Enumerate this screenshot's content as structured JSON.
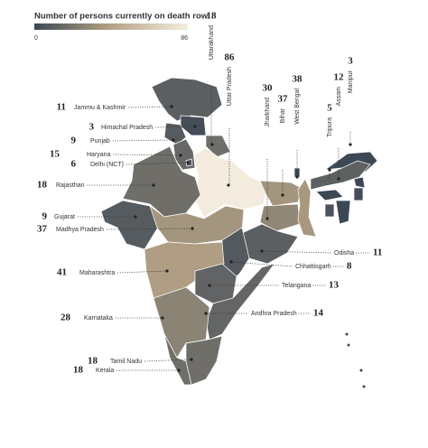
{
  "title": "Number of persons currently on death row",
  "scale": {
    "min": 0,
    "max": 86,
    "colors": [
      "#3d4855",
      "#b5a285",
      "#f3ecde"
    ]
  },
  "states": [
    {
      "name": "Uttarakhand",
      "value": 18
    },
    {
      "name": "Uttar Pradesh",
      "value": 86
    },
    {
      "name": "Jharkhand",
      "value": 30
    },
    {
      "name": "Bihar",
      "value": 37
    },
    {
      "name": "West Bengal",
      "value": 38
    },
    {
      "name": "Tripura",
      "value": 5
    },
    {
      "name": "Assam",
      "value": 12
    },
    {
      "name": "Manipur",
      "value": 3
    },
    {
      "name": "Jammu & Kashmir",
      "value": 11
    },
    {
      "name": "Himachal Pradesh",
      "value": 3
    },
    {
      "name": "Punjab",
      "value": 9
    },
    {
      "name": "Haryana",
      "value": 15
    },
    {
      "name": "Delhi (NCT)",
      "value": 6
    },
    {
      "name": "Rajasthan",
      "value": 18
    },
    {
      "name": "Gujarat",
      "value": 9
    },
    {
      "name": "Madhya Pradesh",
      "value": 37
    },
    {
      "name": "Odisha",
      "value": 11
    },
    {
      "name": "Chhattisgarh",
      "value": 8
    },
    {
      "name": "Maharashtra",
      "value": 41
    },
    {
      "name": "Telangana",
      "value": 13
    },
    {
      "name": "Andhra Pradesh",
      "value": 14
    },
    {
      "name": "Karnataka",
      "value": 28
    },
    {
      "name": "Tamil Nadu",
      "value": 18
    },
    {
      "name": "Kerala",
      "value": 18
    }
  ]
}
